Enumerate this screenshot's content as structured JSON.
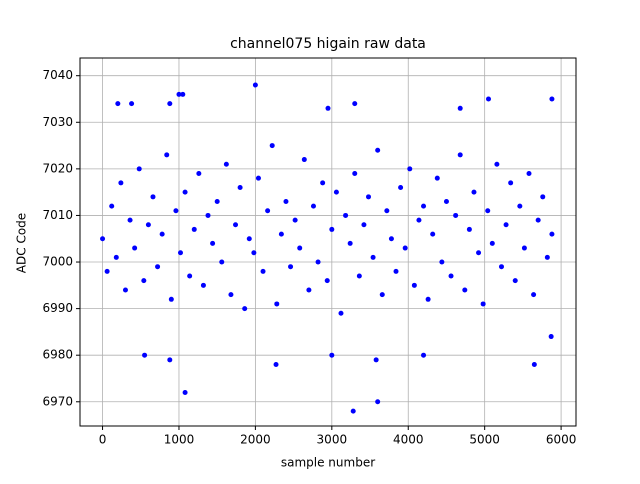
{
  "chart_data": {
    "type": "scatter",
    "title": "channel075 higain raw data",
    "x_label": "sample number",
    "y_label": "ADC Code",
    "xlim": [
      -295,
      6195
    ],
    "ylim": [
      6964.8,
      7043.8
    ],
    "xticks": [
      0,
      1000,
      2000,
      3000,
      4000,
      5000,
      6000
    ],
    "yticks": [
      6970,
      6980,
      6990,
      7000,
      7010,
      7020,
      7030,
      7040
    ],
    "grid": true,
    "series": [
      {
        "color": "#0000ff",
        "x": [
          0,
          60,
          120,
          180,
          240,
          300,
          360,
          420,
          480,
          540,
          600,
          660,
          720,
          780,
          840,
          900,
          960,
          1020,
          1080,
          1140,
          1200,
          1260,
          1320,
          1380,
          1440,
          1500,
          1560,
          1620,
          1680,
          1740,
          1800,
          1860,
          1920,
          1980,
          2040,
          2100,
          2160,
          2220,
          2280,
          2340,
          2400,
          2460,
          2520,
          2580,
          2640,
          2700,
          2760,
          2820,
          2880,
          2940,
          3000,
          3060,
          3120,
          3180,
          3240,
          3300,
          3360,
          3420,
          3480,
          3540,
          3600,
          3660,
          3720,
          3780,
          3840,
          3900,
          3960,
          4020,
          4080,
          4140,
          4200,
          4260,
          4320,
          4380,
          4440,
          4500,
          4560,
          4620,
          4680,
          4740,
          4800,
          4860,
          4920,
          4980,
          5040,
          5100,
          5160,
          5220,
          5280,
          5340,
          5400,
          5460,
          5520,
          5580,
          5640,
          5700,
          5760,
          5820,
          5880,
          1000,
          1050,
          2000,
          3280,
          3600,
          5050,
          5880,
          1080,
          5650,
          2270,
          200,
          380,
          880,
          3300,
          4680,
          2950,
          550,
          880,
          4200,
          3000,
          3580,
          5870
        ],
        "y": [
          7005,
          6998,
          7012,
          7001,
          7017,
          6994,
          7009,
          7003,
          7020,
          6996,
          7008,
          7014,
          6999,
          7006,
          7023,
          6992,
          7011,
          7002,
          7015,
          6997,
          7007,
          7019,
          6995,
          7010,
          7004,
          7013,
          7000,
          7021,
          6993,
          7008,
          7016,
          6990,
          7005,
          7002,
          7018,
          6998,
          7011,
          7025,
          6991,
          7006,
          7013,
          6999,
          7009,
          7003,
          7022,
          6994,
          7012,
          7000,
          7017,
          6996,
          7007,
          7015,
          6989,
          7010,
          7004,
          7019,
          6997,
          7008,
          7014,
          7001,
          7024,
          6993,
          7011,
          7005,
          6998,
          7016,
          7003,
          7020,
          6995,
          7009,
          7012,
          6992,
          7006,
          7018,
          7000,
          7013,
          6997,
          7010,
          7023,
          6994,
          7007,
          7015,
          7002,
          6991,
          7011,
          7004,
          7021,
          6999,
          7008,
          7017,
          6996,
          7012,
          7003,
          7019,
          6993,
          7009,
          7014,
          7001,
          7006,
          7036,
          7036,
          7038,
          6968,
          6970,
          7035,
          7035,
          6972,
          6978,
          6978,
          7034,
          7034,
          7034,
          7034,
          7033,
          7033,
          6980,
          6979,
          6980,
          6980,
          6979,
          6984
        ]
      }
    ]
  }
}
